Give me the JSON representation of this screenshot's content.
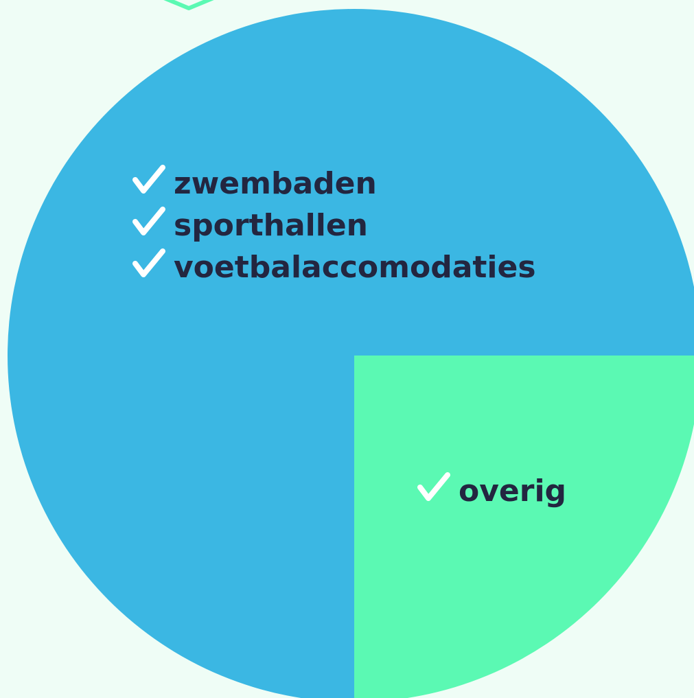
{
  "chart_data": {
    "type": "pie",
    "categories": [
      [
        "zwembaden",
        "sporthallen",
        "voetbalaccomodaties"
      ],
      [
        "overig"
      ]
    ],
    "values": [
      75,
      25
    ],
    "colors": [
      "#3bb7e3",
      "#5bf9b3"
    ]
  }
}
